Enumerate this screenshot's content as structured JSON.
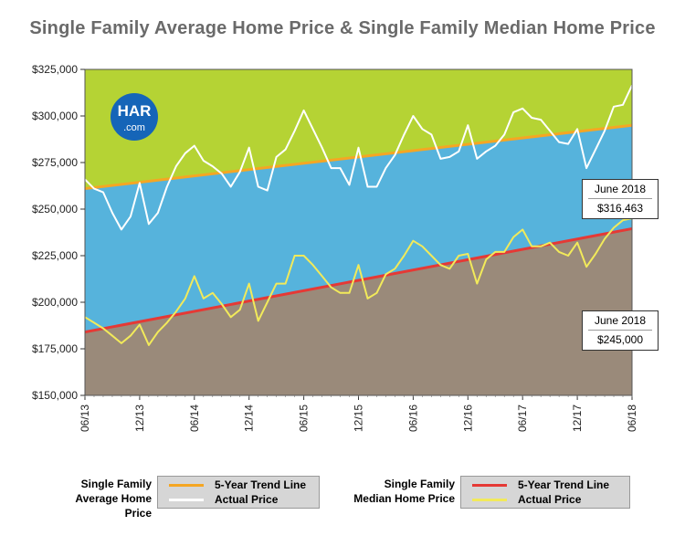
{
  "title": "Single Family Average Home Price & Single Family Median Home Price",
  "logo": {
    "text_top": "HAR",
    "text_bottom": ".com",
    "color": "#1565b8"
  },
  "callouts": {
    "average": {
      "date": "June 2018",
      "value": "$316,463"
    },
    "median": {
      "date": "June 2018",
      "value": "$245,000"
    }
  },
  "legend": {
    "average": {
      "label_line1": "Single Family",
      "label_line2": "Average Home Price",
      "trend": "5-Year Trend Line",
      "actual": "Actual Price",
      "trend_color": "#f5a623",
      "actual_color": "#ffffff"
    },
    "median": {
      "label_line1": "Single Family",
      "label_line2": "Median Home Price",
      "trend": "5-Year Trend Line",
      "actual": "Actual Price",
      "trend_color": "#e53935",
      "actual_color": "#f2ea5a"
    }
  },
  "colors": {
    "top_fill": "#b5d334",
    "middle_fill": "#56b3dc",
    "bottom_fill": "#9a8a7a"
  },
  "chart_data": {
    "type": "line",
    "ylim": [
      150000,
      325000
    ],
    "yticks": [
      150000,
      175000,
      200000,
      225000,
      250000,
      275000,
      300000,
      325000
    ],
    "ytick_labels": [
      "$150,000",
      "$175,000",
      "$200,000",
      "$225,000",
      "$250,000",
      "$275,000",
      "$300,000",
      "$325,000"
    ],
    "xtick_labels": [
      "06/13",
      "12/13",
      "06/14",
      "12/14",
      "06/15",
      "12/15",
      "06/16",
      "12/16",
      "06/17",
      "12/17",
      "06/18"
    ],
    "xtick_index": [
      0,
      6,
      12,
      18,
      24,
      30,
      36,
      42,
      48,
      54,
      60
    ],
    "series": [
      {
        "name": "Actual Price",
        "group": "Single Family Average Home Price",
        "color": "#ffffff",
        "values": [
          266000,
          261000,
          259000,
          248000,
          239000,
          246000,
          264000,
          242000,
          248000,
          262000,
          273000,
          280000,
          284000,
          276000,
          273000,
          269000,
          262000,
          270000,
          283000,
          262000,
          260000,
          278000,
          282000,
          292000,
          303000,
          293000,
          283000,
          272000,
          272000,
          263000,
          283000,
          262000,
          262000,
          272000,
          279000,
          290000,
          300000,
          293000,
          290000,
          277000,
          278000,
          281000,
          295000,
          277000,
          281000,
          284000,
          290000,
          302000,
          304000,
          299000,
          298000,
          292000,
          286000,
          285000,
          293000,
          272000,
          282000,
          292000,
          305000,
          306000,
          316463
        ]
      },
      {
        "name": "5-Year Trend Line",
        "group": "Single Family Average Home Price",
        "color": "#f5a623",
        "values": [
          261000,
          295000
        ]
      },
      {
        "name": "Actual Price",
        "group": "Single Family Median Home Price",
        "color": "#f2ea5a",
        "values": [
          192000,
          189000,
          186000,
          182000,
          178000,
          182000,
          188000,
          177000,
          184000,
          189000,
          195000,
          202000,
          214000,
          202000,
          205000,
          199000,
          192000,
          196000,
          210000,
          190000,
          200000,
          210000,
          210000,
          225000,
          225000,
          220000,
          214000,
          208000,
          205000,
          205000,
          220000,
          202000,
          205000,
          215000,
          218000,
          225000,
          233000,
          230000,
          225000,
          220000,
          218000,
          225000,
          226000,
          210000,
          223000,
          227000,
          227000,
          235000,
          239000,
          230000,
          230000,
          232000,
          227000,
          225000,
          232000,
          219000,
          226000,
          234000,
          240000,
          244000,
          245000
        ]
      },
      {
        "name": "5-Year Trend Line",
        "group": "Single Family Median Home Price",
        "color": "#e53935",
        "values": [
          184000,
          239500
        ]
      }
    ]
  }
}
